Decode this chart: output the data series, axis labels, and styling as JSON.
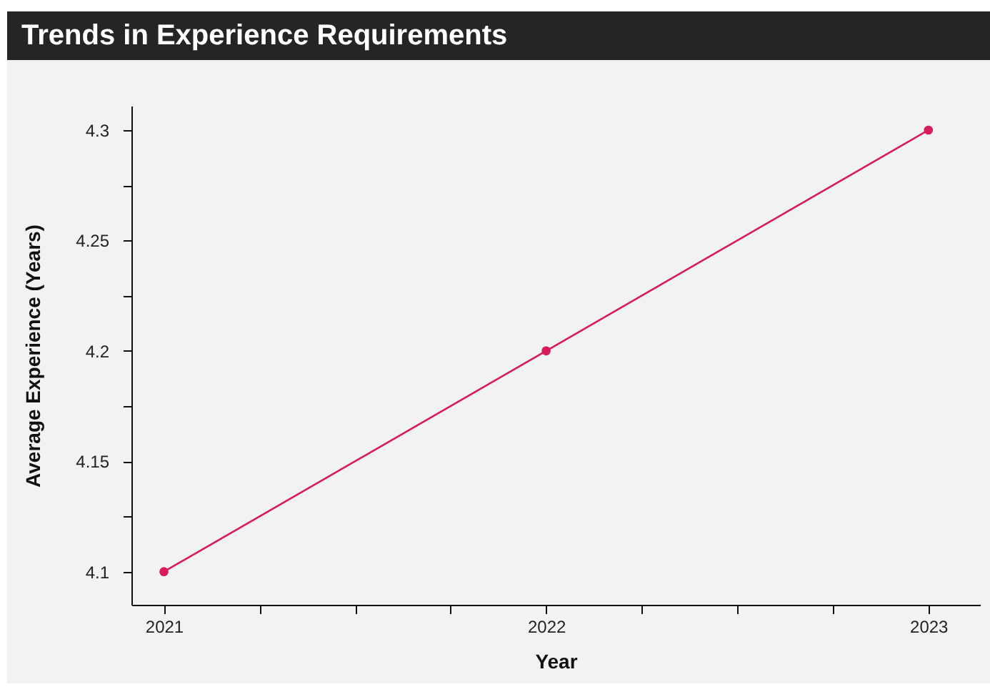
{
  "chart_data": {
    "type": "line",
    "title": "Trends in Experience Requirements",
    "xlabel": "Year",
    "ylabel": "Average Experience (Years)",
    "x": [
      2021,
      2022,
      2023
    ],
    "series": [
      {
        "color": "#d81b5b",
        "values": [
          4.1,
          4.2,
          4.3
        ]
      }
    ],
    "xlim": [
      2020.915,
      2023.135
    ],
    "xticks": [
      2021,
      {
        "value": 2021.25,
        "label": null
      },
      {
        "value": 2021.5,
        "label": null
      },
      {
        "value": 2021.75,
        "label": null
      },
      2022,
      {
        "value": 2022.25,
        "label": null
      },
      {
        "value": 2022.5,
        "label": null
      },
      {
        "value": 2022.75,
        "label": null
      },
      2023
    ],
    "ylim": [
      4.085,
      4.311
    ],
    "yticks": [
      4.1,
      {
        "value": 4.125,
        "label": null
      },
      4.15,
      {
        "value": 4.175,
        "label": null
      },
      4.2,
      {
        "value": 4.225,
        "label": null
      },
      4.25,
      {
        "value": 4.275,
        "label": null
      },
      4.3
    ],
    "grid": false,
    "legend": false,
    "marker": "circle",
    "line_style": "solid"
  }
}
